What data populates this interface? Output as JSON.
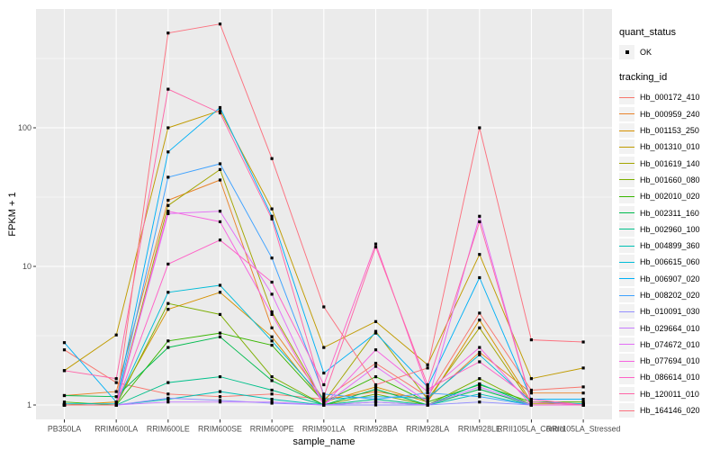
{
  "panel": {
    "bg": "#EBEBEB",
    "grid_color": "#FFFFFF",
    "tick_color": "#333333",
    "tick_label_color": "#4D4D4D",
    "point_color": "#000000"
  },
  "legend": {
    "quant_title": "quant_status",
    "quant_items": [
      {
        "label": "OK",
        "marker": "black-point"
      }
    ],
    "tracking_title": "tracking_id"
  },
  "chart_data": {
    "type": "line",
    "title": "",
    "xlabel": "sample_name",
    "ylabel": "FPKM + 1",
    "y_scale": "log10",
    "y_ticks": [
      1,
      10,
      100
    ],
    "y_minor_ticks": [
      3.162,
      31.62,
      316.2
    ],
    "ylim": [
      0.93,
      720
    ],
    "grid": "on",
    "legend_position": "right",
    "point_shape": "filled-square",
    "categories": [
      "PB350LA",
      "RRIM600LA",
      "RRIM600LE",
      "RRIM600SE",
      "RRIM600PE",
      "RRIM901LA",
      "RRIM928BA",
      "RRIM928LA",
      "RRIM928LE",
      "RRII105LA_Control",
      "RRII105LA_Stressed"
    ],
    "series": [
      {
        "name": "Hb_000172_410",
        "color": "#F8766D",
        "values": [
          2.5,
          1.45,
          1.2,
          1.15,
          1.2,
          1.1,
          2.0,
          1.15,
          4.6,
          1.28,
          1.35
        ]
      },
      {
        "name": "Hb_000959_240",
        "color": "#E9842C",
        "values": [
          1.17,
          1.25,
          30,
          42,
          3.6,
          1.1,
          1.25,
          1.1,
          2.4,
          1.22,
          1.22
        ]
      },
      {
        "name": "Hb_001153_250",
        "color": "#D69100",
        "values": [
          1.0,
          1.05,
          4.9,
          6.5,
          3.1,
          1.05,
          1.35,
          1.05,
          4.1,
          1.05,
          1.05
        ]
      },
      {
        "name": "Hb_001310_010",
        "color": "#C09B00",
        "values": [
          1.77,
          3.2,
          100,
          133,
          26,
          2.6,
          4.0,
          1.95,
          12.2,
          1.55,
          1.85
        ]
      },
      {
        "name": "Hb_001619_140",
        "color": "#A3A500",
        "values": [
          1.0,
          1.0,
          27.5,
          50,
          4.7,
          1.05,
          3.4,
          1.1,
          3.6,
          1.02,
          1.02
        ]
      },
      {
        "name": "Hb_001660_080",
        "color": "#7CAE00",
        "values": [
          1.0,
          1.0,
          5.4,
          4.5,
          1.6,
          1.0,
          1.2,
          1.0,
          1.55,
          1.0,
          1.0
        ]
      },
      {
        "name": "Hb_002010_020",
        "color": "#39B600",
        "values": [
          1.05,
          1.0,
          2.9,
          3.3,
          2.7,
          1.05,
          1.6,
          1.05,
          1.4,
          1.05,
          1.05
        ]
      },
      {
        "name": "Hb_002311_160",
        "color": "#00BB4E",
        "values": [
          1.17,
          1.15,
          2.6,
          3.1,
          1.5,
          1.0,
          1.3,
          1.0,
          1.3,
          1.0,
          1.0
        ]
      },
      {
        "name": "Hb_002960_100",
        "color": "#00C08B",
        "values": [
          1.0,
          1.0,
          1.45,
          1.6,
          1.28,
          1.0,
          1.1,
          1.0,
          1.42,
          1.0,
          1.0
        ]
      },
      {
        "name": "Hb_004899_360",
        "color": "#00C0B4",
        "values": [
          1.0,
          1.0,
          1.1,
          1.25,
          1.1,
          1.0,
          1.05,
          1.0,
          1.2,
          1.0,
          1.0
        ]
      },
      {
        "name": "Hb_006615_060",
        "color": "#00BCD8",
        "values": [
          1.02,
          1.02,
          6.5,
          7.3,
          2.9,
          1.1,
          1.15,
          1.12,
          2.3,
          1.05,
          1.02
        ]
      },
      {
        "name": "Hb_006907_020",
        "color": "#00B0F6",
        "values": [
          2.82,
          1.05,
          67,
          140,
          23,
          1.7,
          3.3,
          1.35,
          8.3,
          1.1,
          1.1
        ]
      },
      {
        "name": "Hb_008202_020",
        "color": "#3DA1FF",
        "values": [
          1.0,
          1.0,
          44,
          55,
          11.5,
          1.2,
          1.1,
          1.22,
          1.15,
          1.0,
          1.0
        ]
      },
      {
        "name": "Hb_010091_030",
        "color": "#9590FF",
        "values": [
          1.0,
          1.0,
          1.12,
          1.08,
          1.03,
          1.0,
          1.0,
          1.0,
          1.05,
          1.0,
          1.0
        ]
      },
      {
        "name": "Hb_029664_010",
        "color": "#C77CFF",
        "values": [
          1.0,
          1.0,
          1.05,
          1.05,
          1.05,
          1.0,
          1.05,
          1.0,
          1.35,
          1.0,
          1.0
        ]
      },
      {
        "name": "Hb_074672_010",
        "color": "#E36EF6",
        "values": [
          1.0,
          1.0,
          24,
          25,
          6.3,
          1.0,
          1.9,
          1.05,
          23,
          1.05,
          1.0
        ]
      },
      {
        "name": "Hb_077694_010",
        "color": "#F763E0",
        "values": [
          1.0,
          1.0,
          25,
          21,
          4.5,
          1.0,
          2.5,
          1.25,
          2.6,
          1.0,
          1.0
        ]
      },
      {
        "name": "Hb_086614_010",
        "color": "#FF61C7",
        "values": [
          1.0,
          1.0,
          10.4,
          15.5,
          7.7,
          1.4,
          14.5,
          1.3,
          2.05,
          1.1,
          1.0
        ]
      },
      {
        "name": "Hb_120011_010",
        "color": "#FF66A8",
        "values": [
          1.77,
          1.55,
          190,
          128,
          22,
          1.15,
          13.8,
          1.4,
          21,
          1.05,
          1.0
        ]
      },
      {
        "name": "Hb_164146_020",
        "color": "#FC717F",
        "values": [
          1.0,
          1.0,
          483,
          561,
          60,
          5.1,
          1.4,
          1.85,
          100,
          2.95,
          2.85
        ]
      }
    ]
  }
}
